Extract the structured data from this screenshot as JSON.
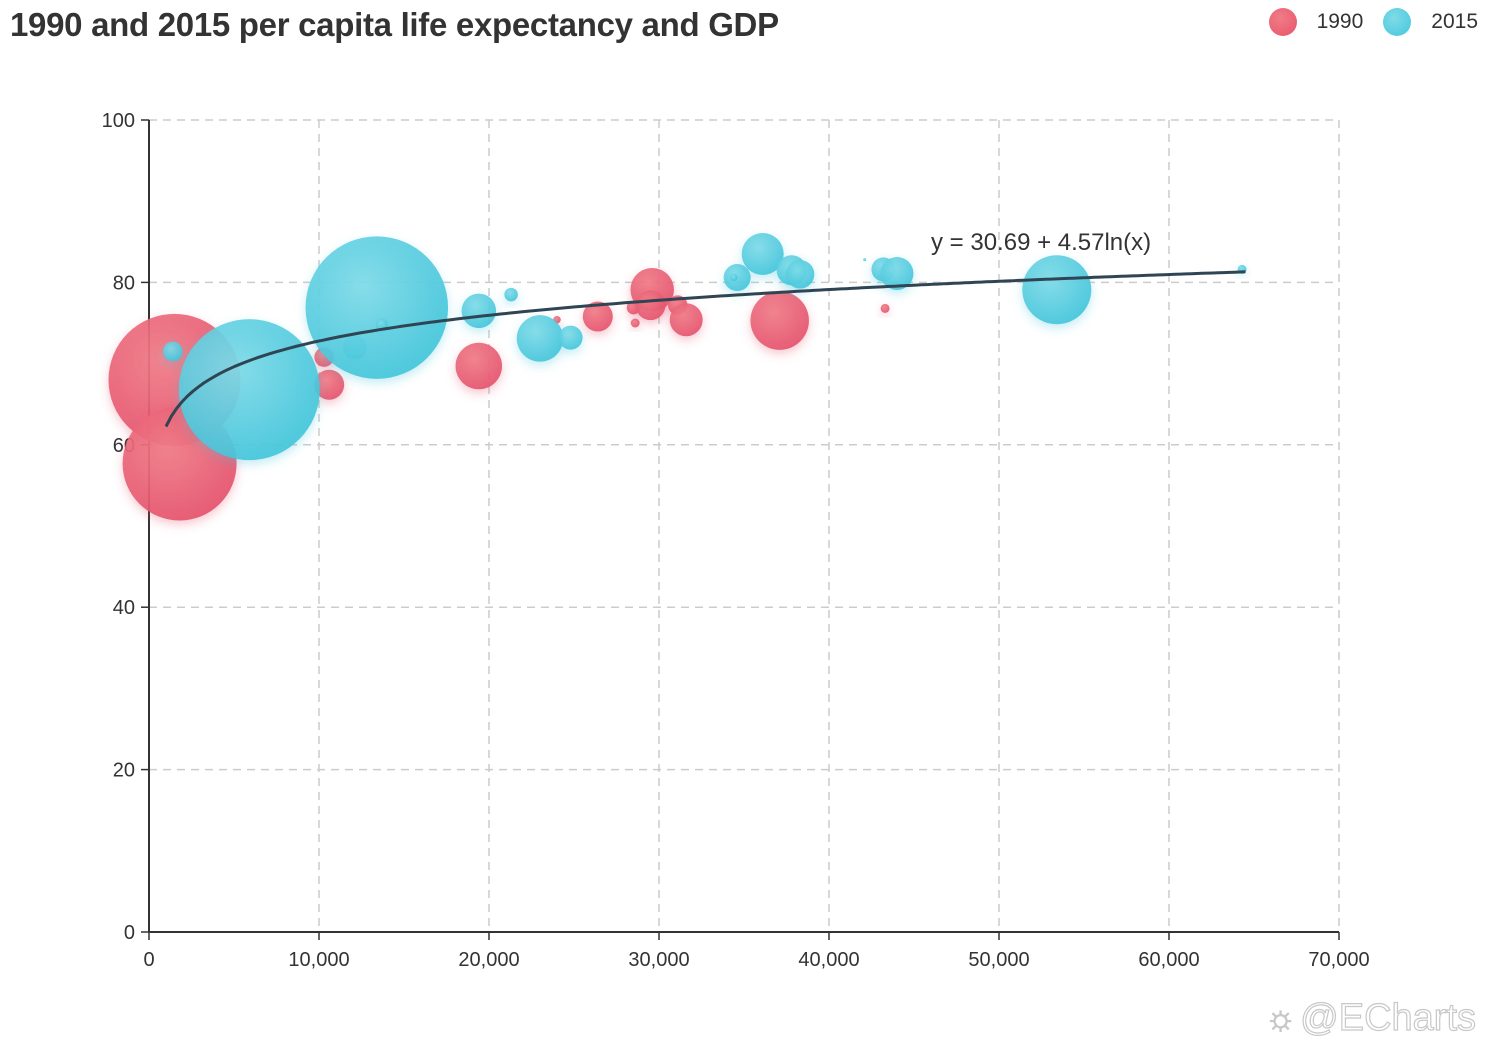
{
  "title": "1990 and 2015 per capita life expectancy and GDP",
  "legend": [
    {
      "name": "1990",
      "color": "#e8546a"
    },
    {
      "name": "2015",
      "color": "#45c6dc"
    }
  ],
  "watermark": "@ECharts",
  "chart_data": {
    "type": "scatter",
    "subtype": "bubble",
    "title": "1990 and 2015 per capita life expectancy and GDP",
    "xlabel": "",
    "ylabel": "",
    "xlim": [
      0,
      70000
    ],
    "ylim": [
      0,
      100
    ],
    "x_ticks": [
      "0",
      "10,000",
      "20,000",
      "30,000",
      "40,000",
      "50,000",
      "60,000",
      "70,000"
    ],
    "y_ticks": [
      "0",
      "20",
      "40",
      "60",
      "80",
      "100"
    ],
    "grid": true,
    "legend_position": "top-right",
    "regression": {
      "label": "y = 30.69 + 4.57ln(x)",
      "intercept": 30.69,
      "coef": 4.57,
      "type": "logarithmic",
      "x_range": [
        1000,
        64500
      ]
    },
    "series": [
      {
        "name": "1990",
        "points": [
          {
            "x": 1500,
            "y": 68.0,
            "size": 8.8
          },
          {
            "x": 1800,
            "y": 57.7,
            "size": 7.6
          },
          {
            "x": 10600,
            "y": 67.4,
            "size": 2.0
          },
          {
            "x": 10300,
            "y": 70.8,
            "size": 1.3
          },
          {
            "x": 19400,
            "y": 69.7,
            "size": 3.1
          },
          {
            "x": 24000,
            "y": 75.4,
            "size": 0.5
          },
          {
            "x": 26400,
            "y": 75.8,
            "size": 2.0
          },
          {
            "x": 28600,
            "y": 75.0,
            "size": 0.6
          },
          {
            "x": 28500,
            "y": 76.9,
            "size": 0.9
          },
          {
            "x": 29600,
            "y": 79.1,
            "size": 2.9
          },
          {
            "x": 29500,
            "y": 77.2,
            "size": 2.0
          },
          {
            "x": 31100,
            "y": 77.2,
            "size": 1.3
          },
          {
            "x": 31600,
            "y": 75.4,
            "size": 2.2
          },
          {
            "x": 37100,
            "y": 75.3,
            "size": 3.9
          },
          {
            "x": 43300,
            "y": 76.8,
            "size": 0.6
          }
        ]
      },
      {
        "name": "2015",
        "points": [
          {
            "x": 1400,
            "y": 71.5,
            "size": 1.3
          },
          {
            "x": 5900,
            "y": 66.8,
            "size": 9.4
          },
          {
            "x": 12100,
            "y": 72.0,
            "size": 1.6
          },
          {
            "x": 13400,
            "y": 76.9,
            "size": 9.5
          },
          {
            "x": 13700,
            "y": 74.8,
            "size": 0.8
          },
          {
            "x": 19400,
            "y": 76.5,
            "size": 2.3
          },
          {
            "x": 21300,
            "y": 78.5,
            "size": 0.9
          },
          {
            "x": 23000,
            "y": 73.1,
            "size": 3.1
          },
          {
            "x": 24800,
            "y": 73.2,
            "size": 1.6
          },
          {
            "x": 34600,
            "y": 80.6,
            "size": 1.8
          },
          {
            "x": 34400,
            "y": 80.6,
            "size": 0.5
          },
          {
            "x": 36100,
            "y": 83.5,
            "size": 2.8
          },
          {
            "x": 37800,
            "y": 81.5,
            "size": 2.0
          },
          {
            "x": 38300,
            "y": 81.0,
            "size": 1.9
          },
          {
            "x": 42100,
            "y": 82.8,
            "size": 0.2
          },
          {
            "x": 43200,
            "y": 81.6,
            "size": 1.6
          },
          {
            "x": 44000,
            "y": 81.1,
            "size": 2.2
          },
          {
            "x": 53400,
            "y": 79.1,
            "size": 4.6
          },
          {
            "x": 64300,
            "y": 81.6,
            "size": 0.6
          }
        ]
      }
    ]
  }
}
